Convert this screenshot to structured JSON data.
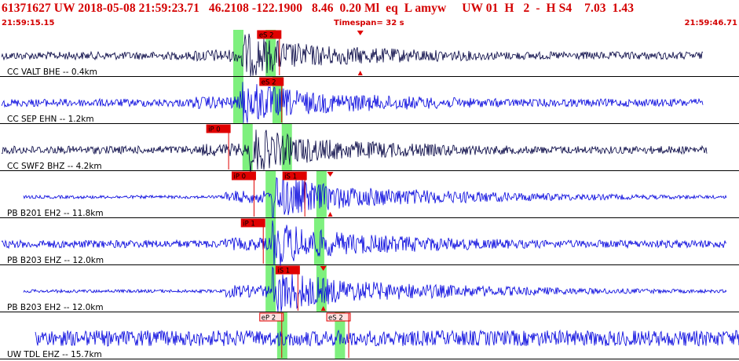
{
  "header": {
    "title": "61371627 UW 2018-05-08 21:59:23.71   46.2108 -122.1900   8.46  0.20 Ml  eq  L amyw     UW 01  H   2  -  H S4    7.03  1.43",
    "start_time": "21:59:15.15",
    "timespan": "Timespan=  32 s",
    "end_time": "21:59:46.71"
  },
  "colors": {
    "trace_dark": "#000040",
    "trace_blue": "#0000dd",
    "pick_band": "#7ef07e",
    "pick_marker": "#e00000",
    "separator": "#000000"
  },
  "channels": [
    {
      "label": "CC VALT BHE -- 0.4km",
      "color": "dark",
      "picks": [
        {
          "label": "eS 2",
          "t": 12.1,
          "style": "filled"
        }
      ],
      "bands": [
        10.1,
        11.5
      ],
      "arrival": 15.6
    },
    {
      "label": "CC SEP EHN -- 1.2km",
      "color": "blue",
      "picks": [
        {
          "label": "eS 2",
          "t": 12.2,
          "style": "filled"
        }
      ],
      "bands": [
        10.1,
        11.8
      ],
      "arrival": null
    },
    {
      "label": "CC SWF2 BHZ -- 4.2km",
      "color": "dark",
      "picks": [
        {
          "label": "iP 0",
          "t": 9.9,
          "style": "filled"
        }
      ],
      "bands": [
        10.5,
        12.2
      ],
      "arrival": null
    },
    {
      "label": "PB B201 EH2 -- 11.8km",
      "color": "blue",
      "picks": [
        {
          "label": "iP 0",
          "t": 11.0,
          "style": "filled"
        },
        {
          "label": "iS 1",
          "t": 13.2,
          "style": "filled"
        }
      ],
      "bands": [
        11.5,
        13.7
      ],
      "arrival": 14.3
    },
    {
      "label": "PB B203 EHZ -- 12.0km",
      "color": "blue",
      "picks": [
        {
          "label": "iP 1",
          "t": 11.4,
          "style": "filled"
        }
      ],
      "bands": [
        11.5,
        13.6
      ],
      "arrival": null
    },
    {
      "label": "PB B203 EH2 -- 12.0km",
      "color": "blue",
      "picks": [
        {
          "label": "iS 1",
          "t": 12.9,
          "style": "filled"
        }
      ],
      "bands": [
        11.5,
        13.7
      ],
      "arrival": 14.0
    },
    {
      "label": "UW TDL EHZ -- 15.7km",
      "color": "blue",
      "picks": [
        {
          "label": "eP 2",
          "t": 12.2,
          "style": "outline"
        },
        {
          "label": "eS 2",
          "t": 15.1,
          "style": "outline"
        }
      ],
      "bands": [
        12.0,
        14.5
      ],
      "arrival": null
    }
  ]
}
